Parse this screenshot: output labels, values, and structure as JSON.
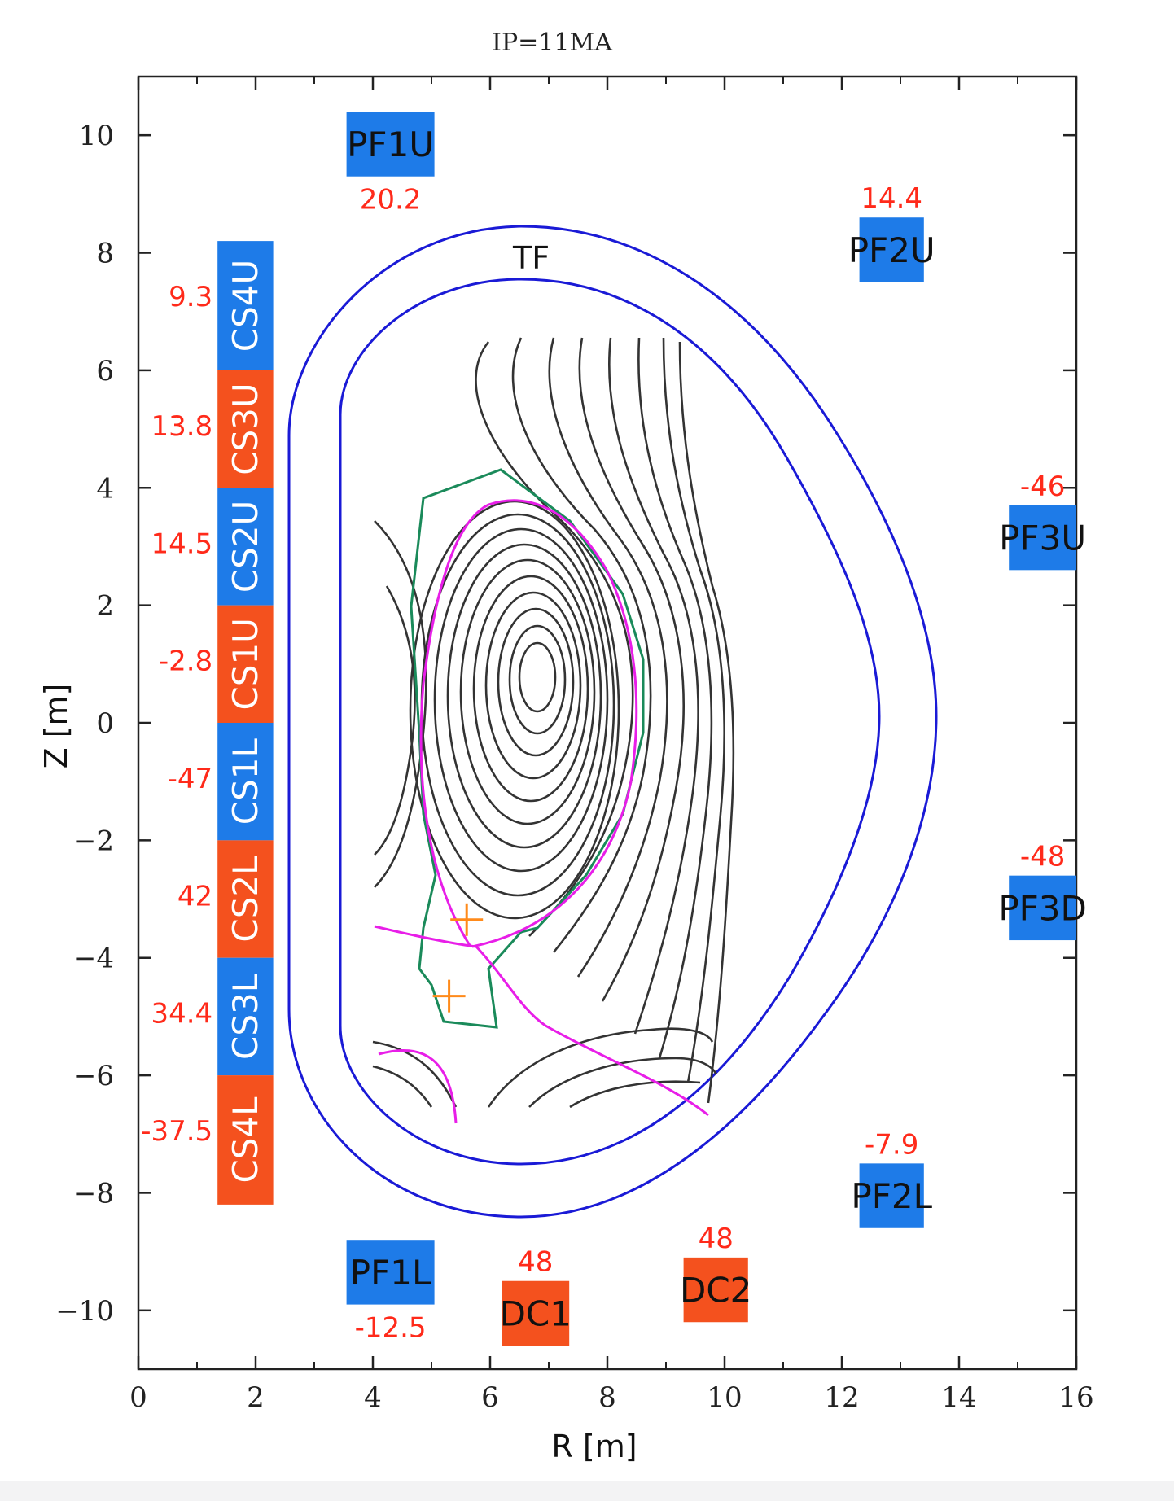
{
  "chart_data": {
    "type": "scatter",
    "title": "IP=11MA",
    "xlabel": "R [m]",
    "ylabel": "Z [m]",
    "xlim": [
      0,
      16
    ],
    "ylim": [
      -11,
      11
    ],
    "x_ticks": [
      "0",
      "2",
      "4",
      "6",
      "8",
      "10",
      "12",
      "14",
      "16"
    ],
    "y_ticks": [
      "−10",
      "−8",
      "−6",
      "−4",
      "−2",
      "0",
      "2",
      "4",
      "6",
      "8",
      "10"
    ],
    "x_tick_values": [
      0,
      2,
      4,
      6,
      8,
      10,
      12,
      14,
      16
    ],
    "y_tick_values": [
      -10,
      -8,
      -6,
      -4,
      -2,
      0,
      2,
      4,
      6,
      8,
      10
    ],
    "colors": {
      "positive_coil": "#1e7be8",
      "negative_coil": "#f4511e",
      "tf_coil": "#1a1ad6",
      "flux_lines": "#333333",
      "separatrix": "#e81ee8",
      "wall": "#1a8a5a",
      "x_point": "#ff8a1a",
      "current_label": "#ff2a1a"
    },
    "tf_label": "TF",
    "cs_coils": [
      {
        "name": "CS4U",
        "current": "9.3",
        "r": [
          1.35,
          2.3
        ],
        "z": [
          6.0,
          8.2
        ],
        "color": "blue"
      },
      {
        "name": "CS3U",
        "current": "13.8",
        "r": [
          1.35,
          2.3
        ],
        "z": [
          4.0,
          6.0
        ],
        "color": "orange"
      },
      {
        "name": "CS2U",
        "current": "14.5",
        "r": [
          1.35,
          2.3
        ],
        "z": [
          2.0,
          4.0
        ],
        "color": "blue"
      },
      {
        "name": "CS1U",
        "current": "-2.8",
        "r": [
          1.35,
          2.3
        ],
        "z": [
          0.0,
          2.0
        ],
        "color": "orange"
      },
      {
        "name": "CS1L",
        "current": "-47",
        "r": [
          1.35,
          2.3
        ],
        "z": [
          -2.0,
          0.0
        ],
        "color": "blue"
      },
      {
        "name": "CS2L",
        "current": "42",
        "r": [
          1.35,
          2.3
        ],
        "z": [
          -4.0,
          -2.0
        ],
        "color": "orange"
      },
      {
        "name": "CS3L",
        "current": "34.4",
        "r": [
          1.35,
          2.3
        ],
        "z": [
          -6.0,
          -4.0
        ],
        "color": "blue"
      },
      {
        "name": "CS4L",
        "current": "-37.5",
        "r": [
          1.35,
          2.3
        ],
        "z": [
          -8.2,
          -6.0
        ],
        "color": "orange"
      }
    ],
    "pf_coils": [
      {
        "name": "PF1U",
        "current": "20.2",
        "r": [
          3.55,
          5.05
        ],
        "z": [
          9.3,
          10.4
        ],
        "color": "blue",
        "label_pos": "below"
      },
      {
        "name": "PF2U",
        "current": "14.4",
        "r": [
          12.3,
          13.4
        ],
        "z": [
          7.5,
          8.6
        ],
        "color": "blue",
        "label_pos": "above"
      },
      {
        "name": "PF3U",
        "current": "-46",
        "r": [
          14.85,
          16.0
        ],
        "z": [
          2.6,
          3.7
        ],
        "color": "blue",
        "label_pos": "above"
      },
      {
        "name": "PF3D",
        "current": "-48",
        "r": [
          14.85,
          16.0
        ],
        "z": [
          -3.7,
          -2.6
        ],
        "color": "blue",
        "label_pos": "above"
      },
      {
        "name": "PF2L",
        "current": "-7.9",
        "r": [
          12.3,
          13.4
        ],
        "z": [
          -8.6,
          -7.5
        ],
        "color": "blue",
        "label_pos": "above"
      },
      {
        "name": "PF1L",
        "current": "-12.5",
        "r": [
          3.55,
          5.05
        ],
        "z": [
          -9.9,
          -8.8
        ],
        "color": "blue",
        "label_pos": "below"
      },
      {
        "name": "DC1",
        "current": "48",
        "r": [
          6.2,
          7.35
        ],
        "z": [
          -10.6,
          -9.5
        ],
        "color": "orange",
        "label_pos": "above"
      },
      {
        "name": "DC2",
        "current": "48",
        "r": [
          9.3,
          10.4
        ],
        "z": [
          -10.2,
          -9.1
        ],
        "color": "orange",
        "label_pos": "above"
      }
    ],
    "magnetic_axis": {
      "r": 6.8,
      "z": 0.75
    },
    "x_points": [
      {
        "r": 5.6,
        "z": -3.35
      },
      {
        "r": 5.3,
        "z": -4.65
      }
    ]
  }
}
